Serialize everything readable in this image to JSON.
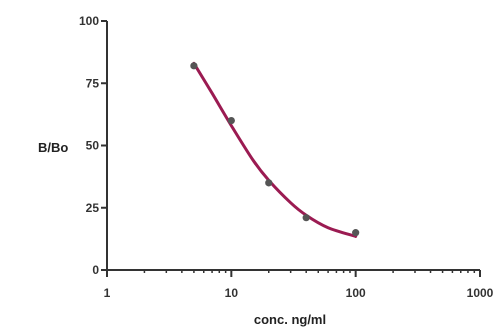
{
  "chart_data": {
    "type": "scatter",
    "title": "",
    "xlabel": "conc. ng/ml",
    "ylabel": "B/Bo",
    "x_scale": "log",
    "xlim": [
      1,
      1000
    ],
    "ylim": [
      0,
      100
    ],
    "x_ticks": [
      "1",
      "10",
      "100",
      "1000"
    ],
    "y_ticks": [
      "0",
      "25",
      "50",
      "75",
      "100"
    ],
    "grid": false,
    "legend": "none",
    "series": [
      {
        "points": [
          {
            "x": 5,
            "y": 82
          },
          {
            "x": 10,
            "y": 60
          },
          {
            "x": 20,
            "y": 35
          },
          {
            "x": 40,
            "y": 21
          },
          {
            "x": 100,
            "y": 15
          }
        ],
        "marker_color": "#555555"
      }
    ],
    "fit_curve": {
      "color": "#9b1b52",
      "x_range": [
        5,
        100
      ],
      "points": [
        {
          "x": 5,
          "y": 83
        },
        {
          "x": 7,
          "y": 71
        },
        {
          "x": 10,
          "y": 58
        },
        {
          "x": 15,
          "y": 44
        },
        {
          "x": 20,
          "y": 36
        },
        {
          "x": 30,
          "y": 27
        },
        {
          "x": 40,
          "y": 22
        },
        {
          "x": 60,
          "y": 17
        },
        {
          "x": 100,
          "y": 13.5
        }
      ]
    },
    "axis_color": "#333333"
  }
}
